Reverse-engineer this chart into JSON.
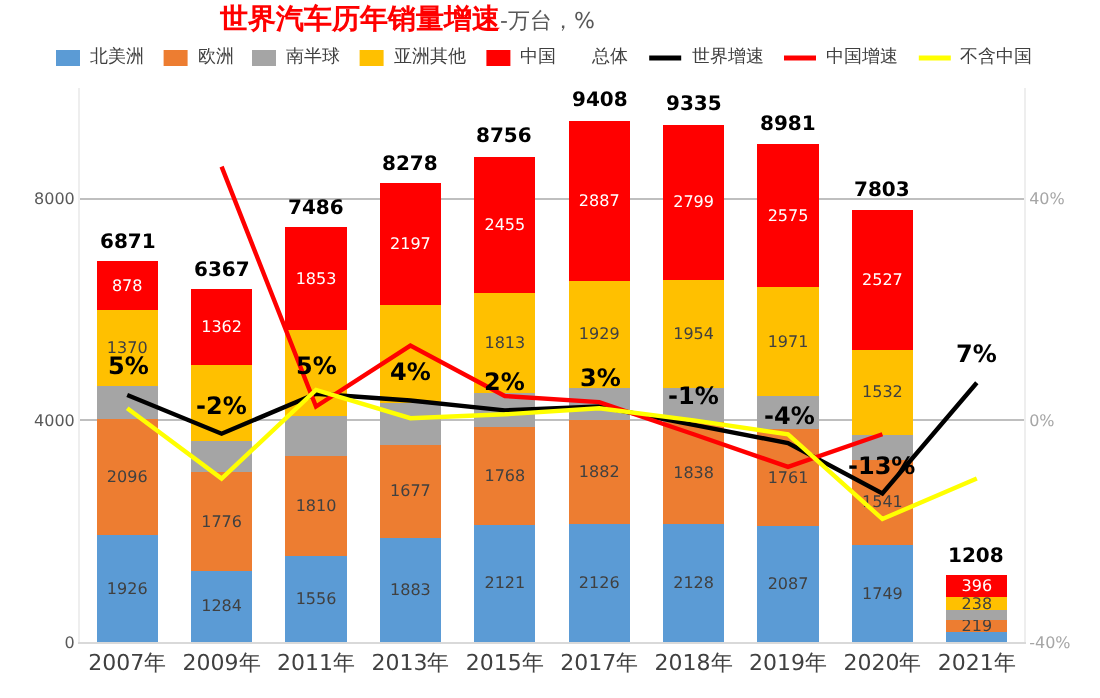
{
  "chart_data": {
    "type": "bar",
    "stacked": true,
    "title": "世界汽车历年销量增速-万台，%",
    "categories": [
      "2007年",
      "2009年",
      "2011年",
      "2013年",
      "2015年",
      "2017年",
      "2018年",
      "2019年",
      "2020年",
      "2021年"
    ],
    "series": [
      {
        "name": "北美洲",
        "color": "#5b9bd5",
        "values": [
          1926,
          1284,
          1556,
          1883,
          2121,
          2126,
          2128,
          2087,
          1749,
          174
        ],
        "value_labels": [
          "1926",
          "1284",
          "1556",
          "1883",
          "2121",
          "2126",
          "2128",
          "2087",
          "1749",
          null
        ]
      },
      {
        "name": "欧洲",
        "color": "#ed7d31",
        "values": [
          2096,
          1776,
          1810,
          1677,
          1768,
          1882,
          1838,
          1761,
          1541,
          219
        ],
        "value_labels": [
          "2096",
          "1776",
          "1810",
          "1677",
          "1768",
          "1882",
          "1838",
          "1761",
          "1541",
          "219"
        ]
      },
      {
        "name": "南半球",
        "color": "#a5a5a5",
        "values": [
          601,
          570,
          712,
          763,
          599,
          584,
          616,
          587,
          454,
          181
        ]
      },
      {
        "name": "亚洲其他",
        "color": "#ffc000",
        "values": [
          1370,
          1375,
          1555,
          1758,
          1813,
          1929,
          1954,
          1971,
          1532,
          238
        ],
        "value_labels": [
          "1370",
          null,
          null,
          null,
          "1813",
          "1929",
          "1954",
          "1971",
          "1532",
          "238"
        ]
      },
      {
        "name": "中国",
        "color": "#ff0000",
        "values": [
          878,
          1362,
          1853,
          2197,
          2455,
          2887,
          2799,
          2575,
          2527,
          396
        ],
        "value_labels": [
          "878",
          "1362",
          "1853",
          "2197",
          "2455",
          "2887",
          "2799",
          "2575",
          "2527",
          "396"
        ]
      },
      {
        "name": "世界增速",
        "type": "line",
        "axis": "y2",
        "color": "#000000",
        "values": [
          4.6,
          -2.4,
          4.8,
          3.6,
          1.8,
          2.5,
          -0.8,
          -4.1,
          -13.2,
          6.8
        ],
        "value_labels": [
          "5%",
          "-2%",
          "5%",
          "4%",
          "2%",
          "3%",
          "-1%",
          "-4%",
          "-13%",
          "7%"
        ]
      },
      {
        "name": "中国增速",
        "type": "line",
        "axis": "y2",
        "color": "#ff0000",
        "values": [
          null,
          45.8,
          2.5,
          13.5,
          4.4,
          3.3,
          -2.5,
          -8.4,
          -2.5,
          null
        ]
      },
      {
        "name": "不含中国",
        "type": "line",
        "axis": "y2",
        "color": "#ffff00",
        "values": [
          2.2,
          -10.5,
          5.5,
          0.4,
          1.1,
          2.2,
          0,
          -2.5,
          -17.8,
          -10.5
        ]
      }
    ],
    "totals": [
      "6871",
      "6367",
      "7486",
      "8278",
      "8756",
      "9408",
      "9335",
      "8981",
      "7803",
      "1208"
    ],
    "annotations": [
      "总体"
    ],
    "ylim": [
      0,
      10000
    ],
    "yticks": [
      0,
      4000,
      8000
    ],
    "y2lim": [
      -40,
      60
    ],
    "y2ticks": [
      {
        "value": -40,
        "label": "-40%"
      },
      {
        "value": 0,
        "label": "0%"
      },
      {
        "value": 40,
        "label": "40%"
      }
    ],
    "grid": "y",
    "legend": "top",
    "marker": "none",
    "line_style": "solid"
  }
}
